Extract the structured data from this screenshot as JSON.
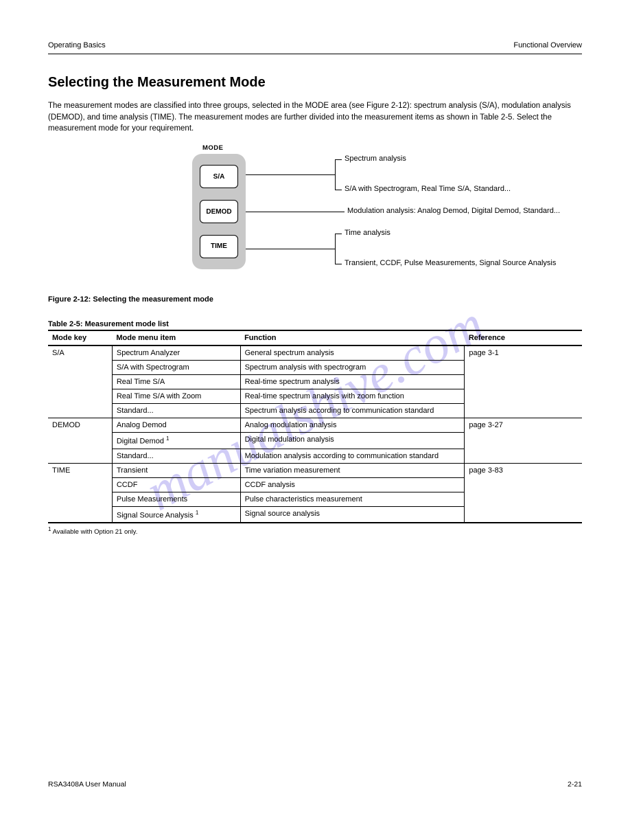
{
  "header": {
    "left": "Operating Basics",
    "right": "Functional Overview"
  },
  "title": "Selecting the Measurement Mode",
  "intro": "The measurement modes are classified into three groups, selected in the MODE area (see Figure 2-12): spectrum analysis (S/A), modulation analysis (DEMOD), and time analysis (TIME). The measurement modes are further divided into the measurement items as shown in Table 2-5. Select the measurement mode for your requirement.",
  "diagram": {
    "mode_label": "MODE",
    "buttons": {
      "sa": "S/A",
      "demod": "DEMOD",
      "time": "TIME"
    },
    "labels": {
      "sa_top": "Spectrum analysis",
      "sa_bottom": "S/A with Spectrogram, Real Time S/A, Standard...",
      "demod": "Modulation analysis: Analog Demod, Digital Demod, Standard...",
      "time_top": "Time analysis",
      "time_bottom": "Transient, CCDF, Pulse Measurements, Signal Source Analysis"
    }
  },
  "fig_caption": "Figure 2-12: Selecting the measurement mode",
  "table_caption": "Table 2-5: Measurement mode list",
  "table": {
    "headers": [
      "Mode key",
      "Mode menu item",
      "Function",
      "Reference"
    ],
    "groups": [
      {
        "mode": "S/A",
        "rows": [
          [
            "Spectrum Analyzer",
            "General spectrum analysis",
            "--"
          ],
          [
            "S/A with Spectrogram",
            "Spectrum analysis with spectrogram",
            ""
          ],
          [
            "Real Time S/A",
            "Real-time spectrum analysis",
            ""
          ],
          [
            "Real Time S/A with Zoom",
            "Real-time spectrum analysis with zoom function",
            ""
          ],
          [
            "Standard...",
            "Spectrum analysis according to communication standard",
            ""
          ]
        ],
        "ref": "page 3-1"
      },
      {
        "mode": "DEMOD",
        "rows": [
          [
            "Analog Demod",
            "Analog modulation analysis",
            "--"
          ],
          [
            "Digital Demod 1",
            "Digital modulation analysis",
            ""
          ],
          [
            "Standard...",
            "Modulation analysis according to communication standard",
            ""
          ]
        ],
        "ref": "page 3-27"
      },
      {
        "mode": "TIME",
        "rows": [
          [
            "Transient",
            "Time variation measurement",
            "--"
          ],
          [
            "CCDF",
            "CCDF analysis",
            ""
          ],
          [
            "Pulse Measurements",
            "Pulse characteristics measurement",
            ""
          ],
          [
            "Signal Source Analysis 1",
            "Signal source analysis",
            ""
          ]
        ],
        "ref": "page 3-83"
      }
    ]
  },
  "footnote": "1 Available with Option 21 only.",
  "footer": {
    "left": "RSA3408A User Manual",
    "right": "2-21"
  }
}
